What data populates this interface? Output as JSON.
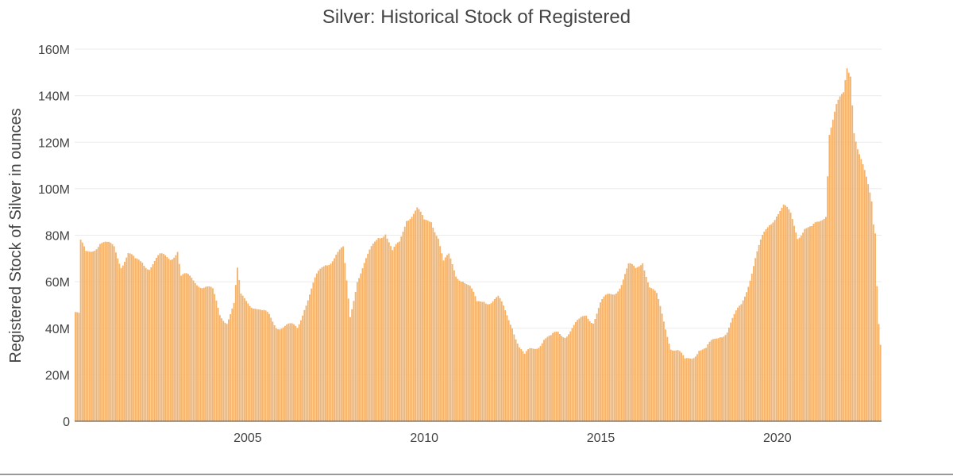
{
  "chart_data": {
    "type": "bar",
    "title": "Silver: Historical Stock of Registered",
    "ylabel": "Registered Stock of Silver in ounces",
    "xlabel": "",
    "x_range": [
      2000.1,
      2022.95
    ],
    "ylim": [
      0,
      160000000
    ],
    "yticks": [
      0,
      20000000,
      40000000,
      60000000,
      80000000,
      100000000,
      120000000,
      140000000,
      160000000
    ],
    "ytick_labels": [
      "0",
      "20M",
      "40M",
      "60M",
      "80M",
      "100M",
      "120M",
      "140M",
      "160M"
    ],
    "xticks": [
      2005,
      2010,
      2015,
      2020
    ],
    "xtick_labels": [
      "2005",
      "2010",
      "2015",
      "2020"
    ],
    "grid": true,
    "bar_color": "#f5b36b",
    "series": [
      {
        "x_step_years": 0.05,
        "x_start": 2000.1,
        "anchors": [
          [
            2000.1,
            47
          ],
          [
            2000.2,
            45
          ],
          [
            2000.25,
            76
          ],
          [
            2000.4,
            72
          ],
          [
            2000.6,
            75
          ],
          [
            2000.8,
            77
          ],
          [
            2001.0,
            75
          ],
          [
            2001.2,
            75
          ],
          [
            2001.4,
            68
          ],
          [
            2001.6,
            72
          ],
          [
            2001.8,
            68
          ],
          [
            2002.0,
            69
          ],
          [
            2002.2,
            67
          ],
          [
            2002.5,
            70
          ],
          [
            2002.8,
            71
          ],
          [
            2003.0,
            74
          ],
          [
            2003.1,
            62
          ],
          [
            2003.4,
            61
          ],
          [
            2003.6,
            60
          ],
          [
            2003.8,
            58
          ],
          [
            2004.0,
            55
          ],
          [
            2004.2,
            46
          ],
          [
            2004.4,
            44
          ],
          [
            2004.6,
            50
          ],
          [
            2004.7,
            64
          ],
          [
            2004.8,
            53
          ],
          [
            2005.0,
            52
          ],
          [
            2005.2,
            50
          ],
          [
            2005.4,
            46
          ],
          [
            2005.6,
            45
          ],
          [
            2005.8,
            42
          ],
          [
            2006.0,
            41
          ],
          [
            2006.2,
            40
          ],
          [
            2006.4,
            40
          ],
          [
            2006.6,
            50
          ],
          [
            2006.9,
            60
          ],
          [
            2007.2,
            68
          ],
          [
            2007.5,
            72
          ],
          [
            2007.7,
            73
          ],
          [
            2007.9,
            45
          ],
          [
            2008.1,
            62
          ],
          [
            2008.4,
            70
          ],
          [
            2008.7,
            80
          ],
          [
            2008.9,
            82
          ],
          [
            2009.1,
            72
          ],
          [
            2009.3,
            76
          ],
          [
            2009.5,
            88
          ],
          [
            2009.8,
            91
          ],
          [
            2010.0,
            85
          ],
          [
            2010.2,
            87
          ],
          [
            2010.4,
            80
          ],
          [
            2010.55,
            68
          ],
          [
            2010.7,
            70
          ],
          [
            2010.9,
            63
          ],
          [
            2011.1,
            62
          ],
          [
            2011.3,
            57
          ],
          [
            2011.5,
            50
          ],
          [
            2011.7,
            53
          ],
          [
            2011.9,
            52
          ],
          [
            2012.1,
            52
          ],
          [
            2012.3,
            47
          ],
          [
            2012.5,
            42
          ],
          [
            2012.7,
            32
          ],
          [
            2012.85,
            27
          ],
          [
            2013.0,
            30
          ],
          [
            2013.2,
            33
          ],
          [
            2013.4,
            36
          ],
          [
            2013.6,
            35
          ],
          [
            2013.8,
            38
          ],
          [
            2014.0,
            38
          ],
          [
            2014.2,
            40
          ],
          [
            2014.4,
            42
          ],
          [
            2014.6,
            46
          ],
          [
            2014.8,
            44
          ],
          [
            2015.0,
            50
          ],
          [
            2015.2,
            53
          ],
          [
            2015.4,
            56
          ],
          [
            2015.6,
            60
          ],
          [
            2015.8,
            66
          ],
          [
            2016.0,
            65
          ],
          [
            2016.2,
            70
          ],
          [
            2016.4,
            58
          ],
          [
            2016.6,
            53
          ],
          [
            2016.8,
            43
          ],
          [
            2017.0,
            33
          ],
          [
            2017.2,
            30
          ],
          [
            2017.4,
            25
          ],
          [
            2017.6,
            28
          ],
          [
            2017.8,
            32
          ],
          [
            2018.0,
            30
          ],
          [
            2018.2,
            34
          ],
          [
            2018.4,
            38
          ],
          [
            2018.6,
            39
          ],
          [
            2018.8,
            44
          ],
          [
            2019.0,
            50
          ],
          [
            2019.2,
            60
          ],
          [
            2019.4,
            70
          ],
          [
            2019.6,
            78
          ],
          [
            2019.8,
            85
          ],
          [
            2020.0,
            90
          ],
          [
            2020.2,
            92
          ],
          [
            2020.4,
            88
          ],
          [
            2020.6,
            80
          ],
          [
            2020.8,
            84
          ],
          [
            2021.0,
            82
          ],
          [
            2021.2,
            85
          ],
          [
            2021.4,
            90
          ],
          [
            2021.5,
            125
          ],
          [
            2021.7,
            135
          ],
          [
            2021.9,
            140
          ],
          [
            2022.0,
            152
          ],
          [
            2022.1,
            150
          ],
          [
            2022.2,
            126
          ],
          [
            2022.3,
            118
          ],
          [
            2022.4,
            112
          ],
          [
            2022.5,
            106
          ],
          [
            2022.6,
            100
          ],
          [
            2022.7,
            94
          ],
          [
            2022.75,
            85
          ],
          [
            2022.8,
            82
          ],
          [
            2022.85,
            60
          ],
          [
            2022.9,
            44
          ],
          [
            2022.95,
            35
          ]
        ]
      }
    ]
  }
}
